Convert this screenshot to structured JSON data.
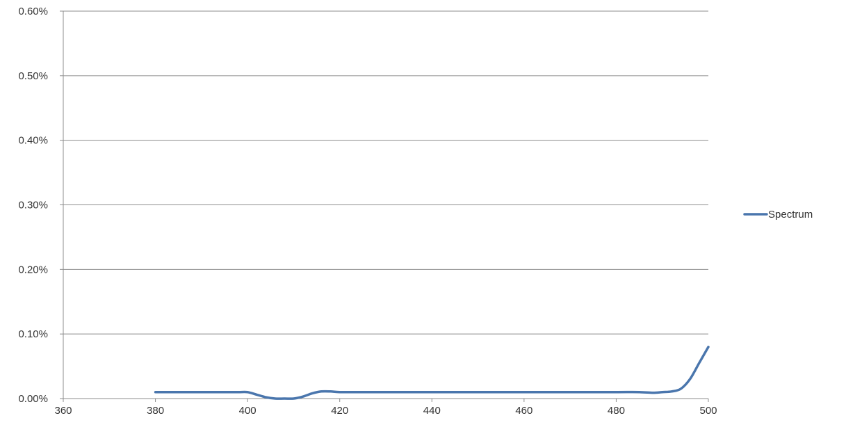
{
  "chart_data": {
    "type": "line",
    "title": "",
    "xlabel": "",
    "ylabel": "",
    "xlim": [
      360,
      500
    ],
    "ylim": [
      0,
      0.006
    ],
    "x_ticks": [
      360,
      380,
      400,
      420,
      440,
      460,
      480,
      500
    ],
    "x_tick_labels": [
      "360",
      "380",
      "400",
      "420",
      "440",
      "460",
      "480",
      "500"
    ],
    "y_ticks": [
      0,
      0.001,
      0.002,
      0.003,
      0.004,
      0.005,
      0.006
    ],
    "y_tick_labels": [
      "0.00%",
      "0.10%",
      "0.20%",
      "0.30%",
      "0.40%",
      "0.50%",
      "0.60%"
    ],
    "grid": {
      "horizontal": true,
      "vertical": false
    },
    "legend": {
      "position": "right"
    },
    "series": [
      {
        "name": "Spectrum",
        "color": "#4a76ad",
        "smooth": true,
        "x": [
          380,
          385,
          390,
          395,
          398,
          400,
          402,
          404,
          406,
          408,
          410,
          412,
          414,
          416,
          418,
          420,
          425,
          430,
          440,
          450,
          460,
          470,
          480,
          485,
          488,
          490,
          492,
          494,
          496,
          498,
          500
        ],
        "y": [
          0.0001,
          0.0001,
          0.0001,
          0.0001,
          0.0001,
          0.0001,
          6e-05,
          2e-05,
          0.0,
          0.0,
          0.0,
          3e-05,
          8e-05,
          0.00011,
          0.00011,
          0.0001,
          0.0001,
          0.0001,
          0.0001,
          0.0001,
          0.0001,
          0.0001,
          0.0001,
          0.0001,
          9e-05,
          0.0001,
          0.00011,
          0.00015,
          0.0003,
          0.00055,
          0.0008
        ]
      }
    ]
  }
}
